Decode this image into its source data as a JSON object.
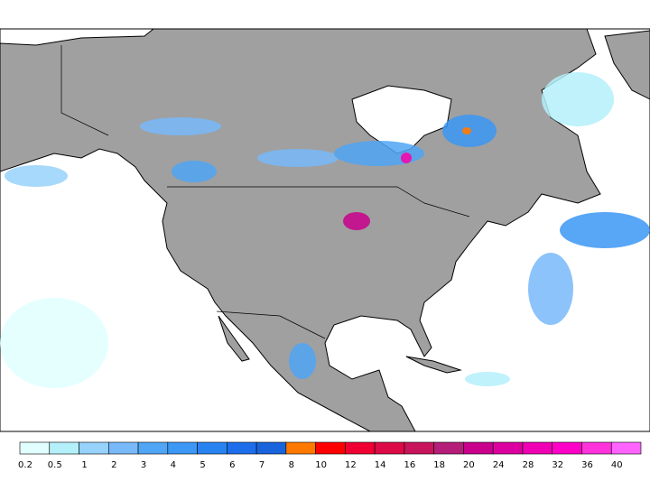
{
  "colorbar": {
    "levels": [
      0.2,
      0.5,
      1,
      2,
      3,
      4,
      5,
      6,
      7,
      8,
      10,
      12,
      14,
      16,
      18,
      20,
      24,
      28,
      32,
      36,
      40
    ],
    "colors": [
      "#e1ffff",
      "#b4f0fa",
      "#96d2fa",
      "#78b9fa",
      "#50a5f5",
      "#3c97f5",
      "#2883f0",
      "#1e6eeb",
      "#1964dc",
      "#ff7800",
      "#ff0000",
      "#f00032",
      "#dc0a46",
      "#c8145a",
      "#b41e78",
      "#c8008c",
      "#dc00a0",
      "#f000b4",
      "#ff00c8",
      "#ff32dc",
      "#ff64ff"
    ]
  }
}
